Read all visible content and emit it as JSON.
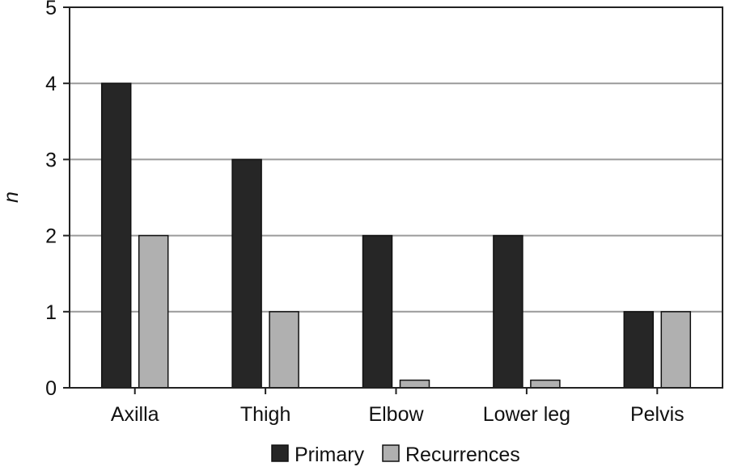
{
  "chart_data": {
    "type": "bar",
    "title": "",
    "xlabel": "",
    "ylabel": "n",
    "ylim": [
      0,
      5
    ],
    "yticks": [
      0,
      1,
      2,
      3,
      4,
      5
    ],
    "grid": true,
    "legend_position": "bottom",
    "categories": [
      "Axilla",
      "Thigh",
      "Elbow",
      "Lower leg",
      "Pelvis"
    ],
    "series": [
      {
        "name": "Primary",
        "color": "#262626",
        "values": [
          4,
          3,
          2,
          2,
          1
        ]
      },
      {
        "name": "Recurrences",
        "color": "#b0b0b0",
        "values": [
          2,
          1,
          0.1,
          0.1,
          1
        ]
      }
    ]
  }
}
